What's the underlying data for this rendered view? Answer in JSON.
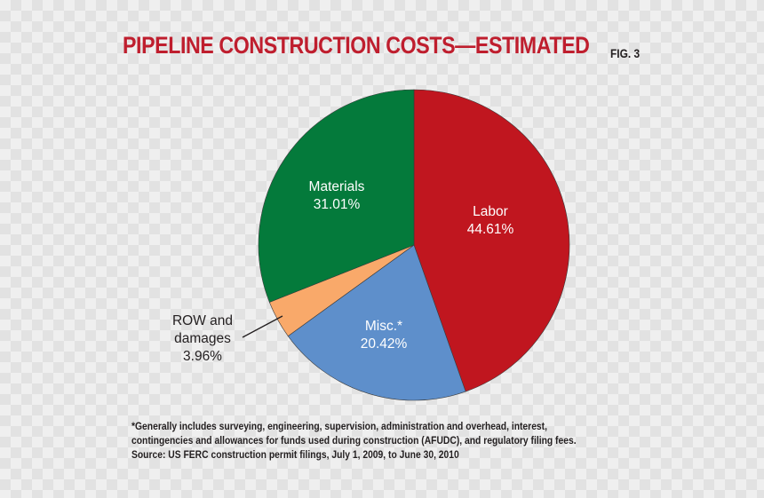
{
  "title": "PIPELINE CONSTRUCTION COSTS—ESTIMATED",
  "figure_label": "FIG. 3",
  "chart_data": {
    "type": "pie",
    "title": "PIPELINE CONSTRUCTION COSTS—ESTIMATED",
    "slices": [
      {
        "label": "Labor",
        "value": 44.61,
        "display": "44.61%",
        "color": "#c0161f"
      },
      {
        "label": "Misc.*",
        "value": 20.42,
        "display": "20.42%",
        "color": "#5e8fcb"
      },
      {
        "label_lines": [
          "ROW and",
          "damages"
        ],
        "label": "ROW and damages",
        "value": 3.96,
        "display": "3.96%",
        "color": "#f9a96a"
      },
      {
        "label": "Materials",
        "value": 31.01,
        "display": "31.01%",
        "color": "#047a3b"
      }
    ],
    "start": "12 o'clock",
    "direction": "clockwise"
  },
  "footnotes": [
    "*Generally includes surveying, engineering, supervision, administration and overhead, interest,",
    "contingencies and allowances for funds used during construction (AFUDC), and regulatory filing fees.",
    "Source: US FERC construction permit filings, July 1, 2009, to June 30, 2010"
  ]
}
